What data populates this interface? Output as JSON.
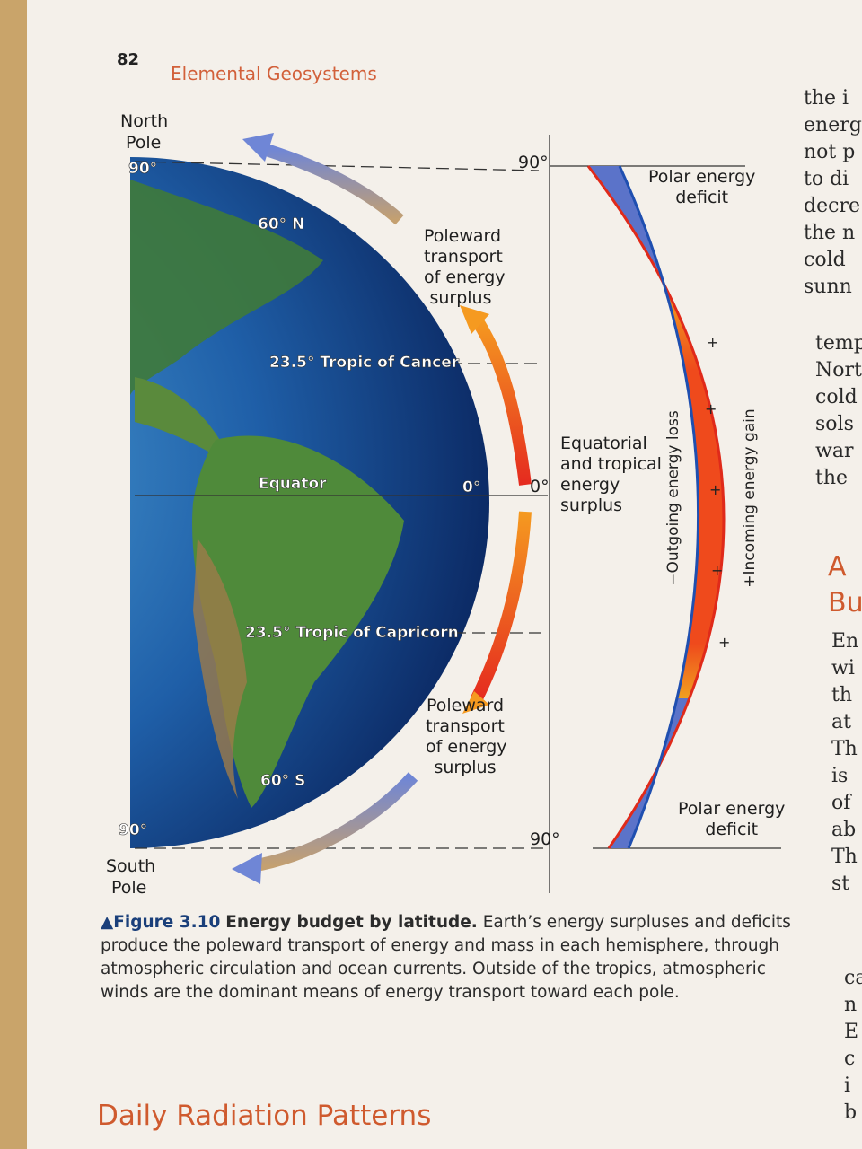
{
  "header": {
    "page_number": "82",
    "running_title": "Elemental Geosystems"
  },
  "figure": {
    "globe_labels": {
      "north_pole": [
        "North",
        "Pole"
      ],
      "north_90": "90°",
      "lat_60n": "60° N",
      "tropic_cancer": "23.5° Tropic of Cancer",
      "equator": "Equator",
      "equator_0": "0°",
      "tropic_capricorn": "23.5° Tropic of Capricorn",
      "lat_60s": "60° S",
      "south_90": "90°",
      "south_pole": [
        "South",
        "Pole"
      ]
    },
    "arrow_labels": {
      "north": [
        "Poleward",
        "transport",
        "of energy",
        "surplus"
      ],
      "south": [
        "Poleward",
        "transport",
        "of energy",
        "surplus"
      ]
    },
    "graph": {
      "top": "90°",
      "middle": "0°",
      "bottom": "90°",
      "equatorial": [
        "Equatorial",
        "and tropical",
        "energy",
        "surplus"
      ],
      "polar_north": [
        "Polar energy",
        "deficit"
      ],
      "polar_south": [
        "Polar energy",
        "deficit"
      ],
      "outgoing": "−Outgoing energy loss",
      "incoming": "+Incoming energy gain",
      "plus_signs": [
        "+",
        "+",
        "+",
        "+",
        "+"
      ]
    }
  },
  "caption": {
    "label": "▲Figure 3.10",
    "title": "Energy budget by latitude.",
    "lines": [
      "Earth’s energy surpluses and deficits",
      "produce the poleward transport of energy and mass in each hemisphere, through",
      "atmospheric circulation and ocean currents. Outside of the tropics, atmospheric",
      "winds are the dominant means of energy transport toward each pole."
    ]
  },
  "section_heading": "Daily Radiation Patterns",
  "side_column": {
    "lines_top": [
      "the i",
      "energ",
      "not p",
      "to di",
      "decre",
      "the n",
      "cold",
      "sunn"
    ],
    "lines_mid": [
      "temp",
      "Nort",
      "cold",
      "sols",
      "war",
      "the"
    ],
    "heading": [
      "A",
      "Bu"
    ],
    "lines_bottom": [
      "En",
      "wi",
      "th",
      "at",
      "Th",
      "is",
      "of",
      "ab",
      "Th",
      "st"
    ],
    "lines_end": [
      "ca",
      "n",
      "E",
      "c",
      "i",
      "b"
    ]
  }
}
